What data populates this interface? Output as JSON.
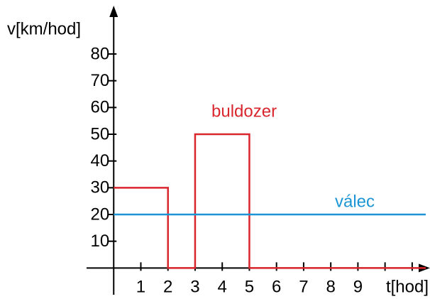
{
  "chart_data": {
    "type": "line",
    "y_label": "v[km/hod]",
    "x_label": "t[hod]",
    "xlim": [
      -1,
      11.5
    ],
    "ylim": [
      -10,
      97
    ],
    "xticks": [
      1,
      2,
      3,
      4,
      5,
      6,
      7,
      8,
      9
    ],
    "xticks_unlabeled": [
      10,
      11
    ],
    "yticks": [
      10,
      20,
      30,
      40,
      50,
      60,
      70,
      80
    ],
    "series": [
      {
        "name": "buldozer",
        "color": "#d9262c",
        "x": [
          0,
          2,
          2,
          3,
          3,
          5,
          5,
          11.5
        ],
        "values": [
          30,
          30,
          0,
          0,
          50,
          50,
          0,
          0
        ]
      },
      {
        "name": "válec",
        "color": "#1b95d5",
        "x": [
          0,
          11.5
        ],
        "values": [
          20,
          20
        ]
      }
    ]
  }
}
